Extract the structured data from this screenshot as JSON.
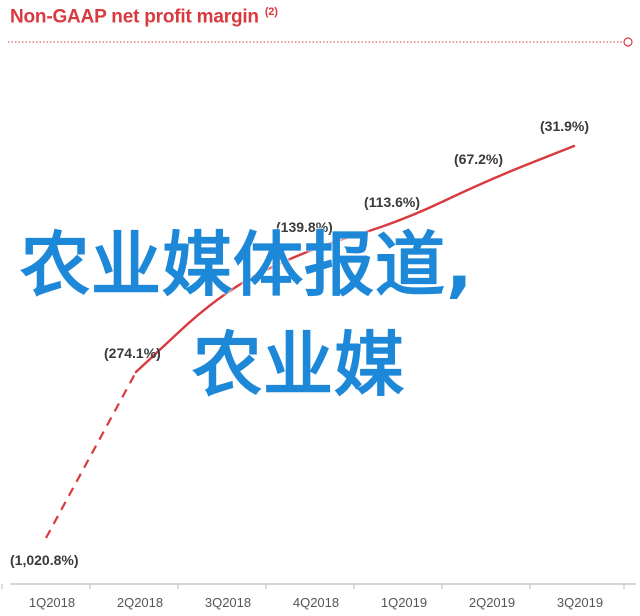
{
  "chart_data": {
    "type": "line",
    "title": "Non-GAAP net profit margin",
    "title_note": "(2)",
    "categories": [
      "1Q2018",
      "2Q2018",
      "3Q2018",
      "4Q2018",
      "1Q2019",
      "2Q2019",
      "3Q2019"
    ],
    "values": [
      -1020.8,
      -274.1,
      -235,
      -139.8,
      -113.6,
      -67.2,
      -31.9
    ],
    "data_labels": [
      "(1,020.8%)",
      "(274.1%)",
      "",
      "(139.8%)",
      "(113.6%)",
      "(67.2%)",
      "(31.9%)"
    ],
    "dashed_segment": [
      "1Q2018",
      "2Q2018"
    ],
    "ylim": [
      -1100,
      0
    ],
    "grid": false,
    "series_color": "#d83a3f",
    "axis_color": "#bdbdbd"
  },
  "overlay": {
    "line1": "农业媒体报道,",
    "line2": "农业媒",
    "color": "#1e88d8"
  }
}
